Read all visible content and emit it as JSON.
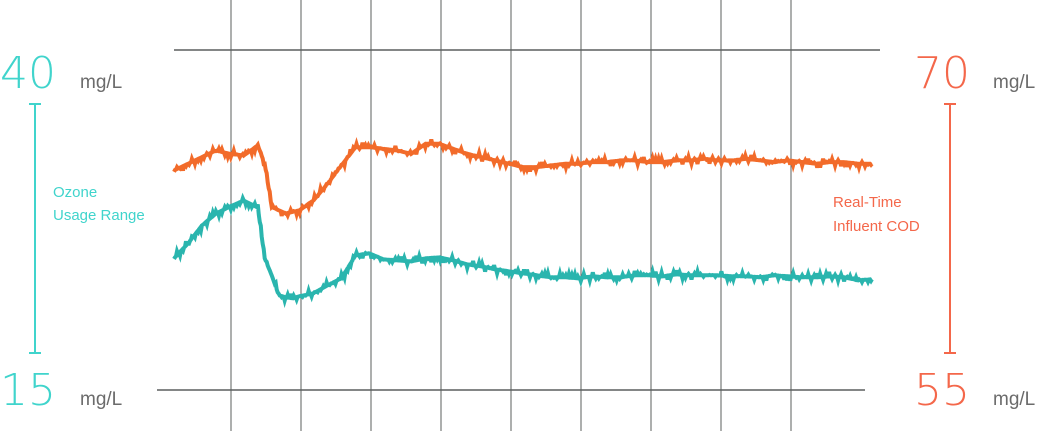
{
  "colors": {
    "left": "#40d4cc",
    "left_line": "#2ab5ae",
    "right": "#f4674a",
    "right_line": "#f26b2a",
    "grid": "#5b5f5e"
  },
  "left_axis": {
    "max": "40",
    "min": "15",
    "unit_top": "mg/L",
    "unit_bottom": "mg/L",
    "label_line1": "Ozone",
    "label_line2": "Usage Range"
  },
  "right_axis": {
    "max": "70",
    "min": "55",
    "unit_top": "mg/L",
    "unit_bottom": "mg/L",
    "label_line1": "Real-Time",
    "label_line2": "Influent COD"
  },
  "chart_data": {
    "type": "line",
    "title": "",
    "grid": "vertical",
    "y_left": {
      "range": [
        15,
        40
      ],
      "unit": "mg/L",
      "label": "Ozone Usage Range"
    },
    "y_right": {
      "range": [
        55,
        70
      ],
      "unit": "mg/L",
      "label": "Real-Time Influent COD"
    },
    "series": [
      {
        "name": "Real-Time Influent COD",
        "axis": "right",
        "color": "#f26b2a",
        "x": [
          0,
          2,
          4,
          6,
          8,
          10,
          12,
          13,
          14,
          15,
          16,
          17,
          18,
          20,
          22,
          24,
          26,
          28,
          30,
          32,
          34,
          36,
          38,
          40,
          42,
          44,
          46,
          48,
          50,
          52,
          54,
          56,
          58,
          60,
          62,
          64,
          66,
          68,
          70,
          72,
          74,
          76,
          78,
          80,
          82,
          84,
          86,
          88,
          90,
          92,
          94,
          96,
          98,
          100
        ],
        "values": [
          66.0,
          66.4,
          66.8,
          67.2,
          67.0,
          66.9,
          67.5,
          66.4,
          63.8,
          63.6,
          63.4,
          63.5,
          63.6,
          64.2,
          65.2,
          66.3,
          67.4,
          67.4,
          67.3,
          67.2,
          67.0,
          67.6,
          67.6,
          67.3,
          67.0,
          66.8,
          66.6,
          66.4,
          66.2,
          66.2,
          66.3,
          66.4,
          66.4,
          66.5,
          66.5,
          66.6,
          66.6,
          66.5,
          66.5,
          66.6,
          66.6,
          66.7,
          66.6,
          66.6,
          66.7,
          66.6,
          66.5,
          66.6,
          66.5,
          66.4,
          66.5,
          66.5,
          66.4,
          66.4
        ]
      },
      {
        "name": "Ozone Usage Range",
        "axis": "left",
        "color": "#2ab5ae",
        "x": [
          0,
          2,
          4,
          6,
          8,
          10,
          12,
          13,
          14,
          15,
          16,
          17,
          18,
          20,
          22,
          24,
          26,
          28,
          30,
          32,
          34,
          36,
          38,
          40,
          42,
          44,
          46,
          48,
          50,
          52,
          54,
          56,
          58,
          60,
          62,
          64,
          66,
          68,
          70,
          72,
          74,
          76,
          78,
          80,
          82,
          84,
          86,
          88,
          90,
          92,
          94,
          96,
          98,
          100
        ],
        "values": [
          24.5,
          26.0,
          27.8,
          29.0,
          29.7,
          30.3,
          29.6,
          24.5,
          22.8,
          20.8,
          20.6,
          20.5,
          20.7,
          21.0,
          21.8,
          22.5,
          24.8,
          25.0,
          24.4,
          24.3,
          24.2,
          24.5,
          24.6,
          24.3,
          23.9,
          23.7,
          23.4,
          23.2,
          23.0,
          22.8,
          22.6,
          22.6,
          22.5,
          22.7,
          22.6,
          22.6,
          22.8,
          22.8,
          22.7,
          22.9,
          22.8,
          22.8,
          22.8,
          22.7,
          22.7,
          22.6,
          22.8,
          22.7,
          22.6,
          22.6,
          22.7,
          22.6,
          22.3,
          22.4
        ]
      }
    ]
  }
}
